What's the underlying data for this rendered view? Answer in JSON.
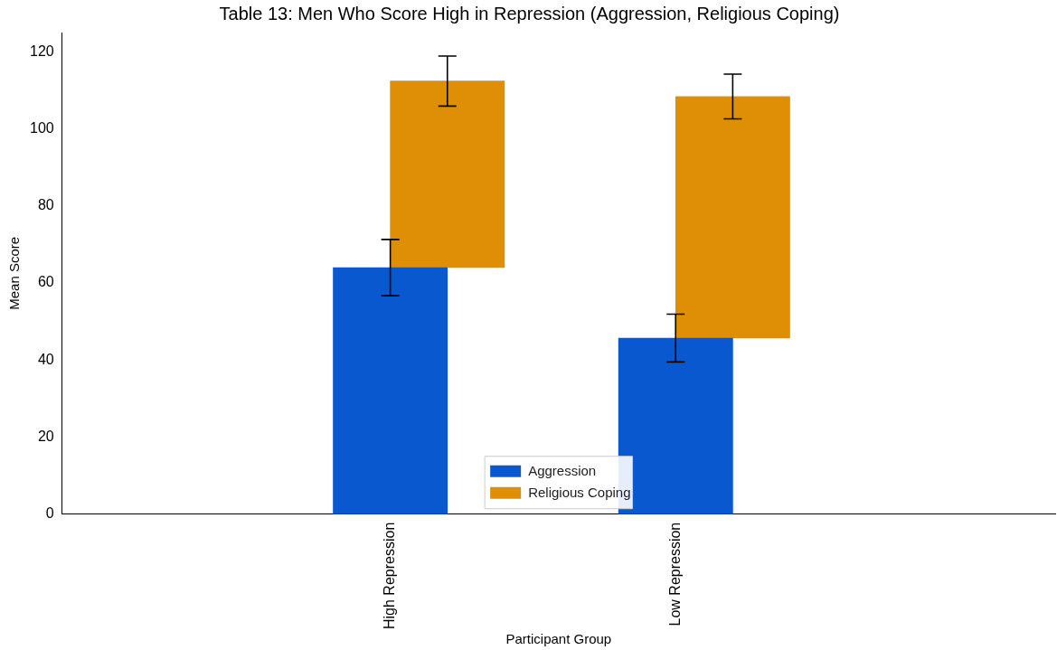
{
  "chart_data": {
    "type": "bar",
    "title": "Table 13: Men Who Score High in Repression (Aggression, Religious Coping)",
    "xlabel": "Participant Group",
    "ylabel": "Mean Score",
    "categories": [
      "High Repression",
      "Low Repression"
    ],
    "series": [
      {
        "name": "Aggression",
        "color": "#0a58d0",
        "values": [
          64,
          45.7
        ],
        "errors": [
          7.3,
          6.2
        ]
      },
      {
        "name": "Religious Coping",
        "color": "#df8f05",
        "base": [
          64,
          45.7
        ],
        "values": [
          48.4,
          62.7
        ],
        "errors": [
          6.5,
          5.8
        ]
      }
    ],
    "ylim": [
      0,
      125
    ],
    "yticks": [
      0,
      20,
      40,
      60,
      80,
      100,
      120
    ],
    "grid": false,
    "legend": "bottom"
  }
}
